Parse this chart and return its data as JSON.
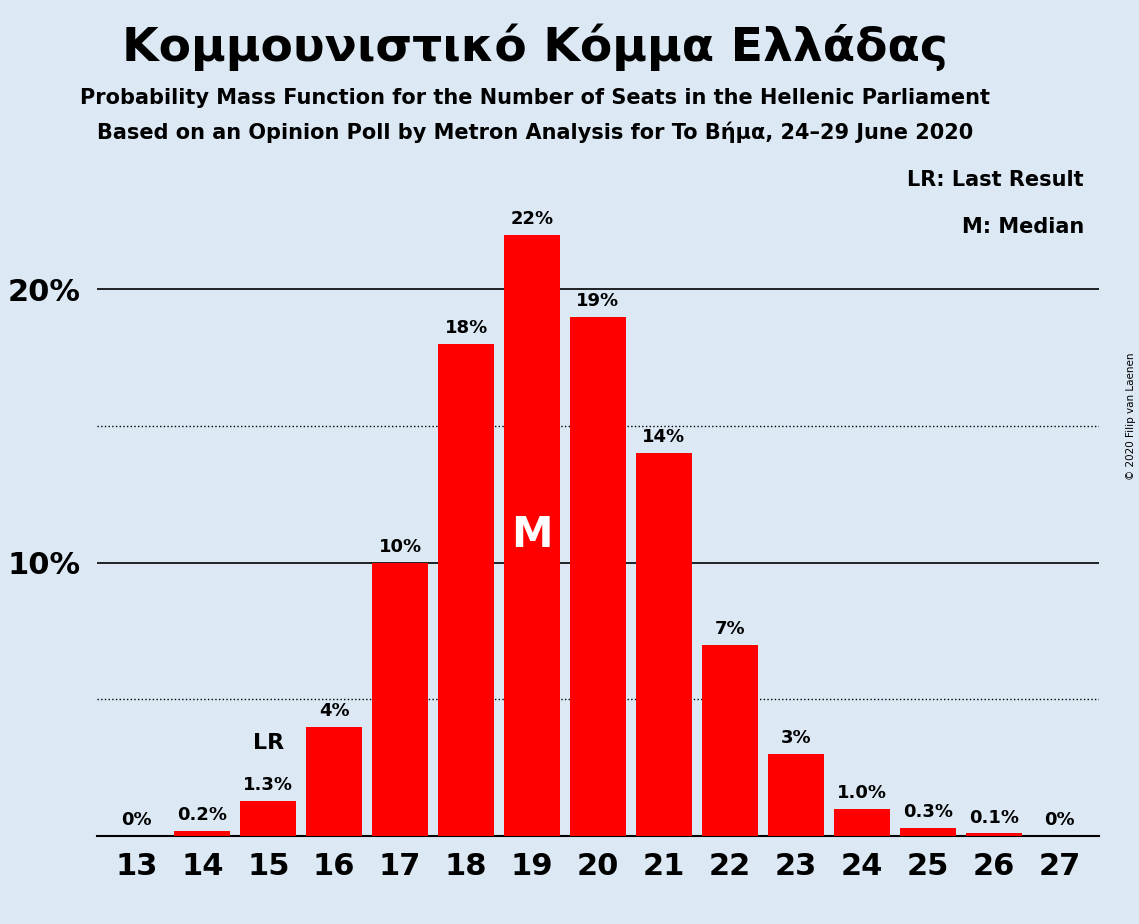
{
  "title": "Κομμουνιστικό Κόμμα Ελλάδας",
  "subtitle1": "Probability Mass Function for the Number of Seats in the Hellenic Parliament",
  "subtitle2": "Based on an Opinion Poll by Metron Analysis for To Βήμα, 24–29 June 2020",
  "copyright": "© 2020 Filip van Laenen",
  "categories": [
    13,
    14,
    15,
    16,
    17,
    18,
    19,
    20,
    21,
    22,
    23,
    24,
    25,
    26,
    27
  ],
  "values": [
    0.0,
    0.2,
    1.3,
    4.0,
    10.0,
    18.0,
    22.0,
    19.0,
    14.0,
    7.0,
    3.0,
    1.0,
    0.3,
    0.1,
    0.0
  ],
  "bar_color": "#ff0000",
  "background_color": "#dce9f5",
  "bar_labels": [
    "0%",
    "0.2%",
    "1.3%",
    "4%",
    "10%",
    "18%",
    "22%",
    "19%",
    "14%",
    "7%",
    "3%",
    "1.0%",
    "0.3%",
    "0.1%",
    "0%"
  ],
  "median_seat": 19,
  "lr_seat": 15,
  "legend_lr": "LR: Last Result",
  "legend_m": "M: Median",
  "solid_yticks": [
    10,
    20
  ],
  "solid_ytick_labels": [
    "10%",
    "20%"
  ],
  "dotted_yticks": [
    5,
    15
  ],
  "ylim": [
    0,
    25
  ],
  "bar_label_fontsize": 13,
  "tick_fontsize": 22,
  "title_fontsize": 34,
  "subtitle_fontsize": 15
}
